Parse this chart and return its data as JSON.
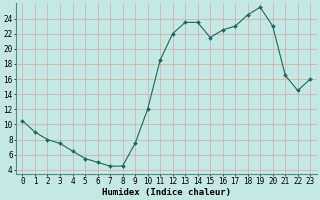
{
  "x": [
    0,
    1,
    2,
    3,
    4,
    5,
    6,
    7,
    8,
    9,
    10,
    11,
    12,
    13,
    14,
    15,
    16,
    17,
    18,
    19,
    20,
    21,
    22,
    23
  ],
  "y": [
    10.5,
    9.0,
    8.0,
    7.5,
    6.5,
    5.5,
    5.0,
    4.5,
    4.5,
    7.5,
    12.0,
    18.5,
    22.0,
    23.5,
    23.5,
    21.5,
    22.5,
    23.0,
    24.5,
    25.5,
    23.0,
    16.5,
    14.5,
    16.0
  ],
  "line_color": "#1a6b5a",
  "marker": "D",
  "marker_size": 2.0,
  "background_color": "#c5e8e5",
  "grid_color": "#d4a8a8",
  "xlabel": "Humidex (Indice chaleur)",
  "xlim": [
    -0.5,
    23.5
  ],
  "ylim": [
    3.5,
    26.0
  ],
  "xticks": [
    0,
    1,
    2,
    3,
    4,
    5,
    6,
    7,
    8,
    9,
    10,
    11,
    12,
    13,
    14,
    15,
    16,
    17,
    18,
    19,
    20,
    21,
    22,
    23
  ],
  "yticks": [
    4,
    6,
    8,
    10,
    12,
    14,
    16,
    18,
    20,
    22,
    24
  ],
  "tick_fontsize": 5.5,
  "label_fontsize": 6.5
}
